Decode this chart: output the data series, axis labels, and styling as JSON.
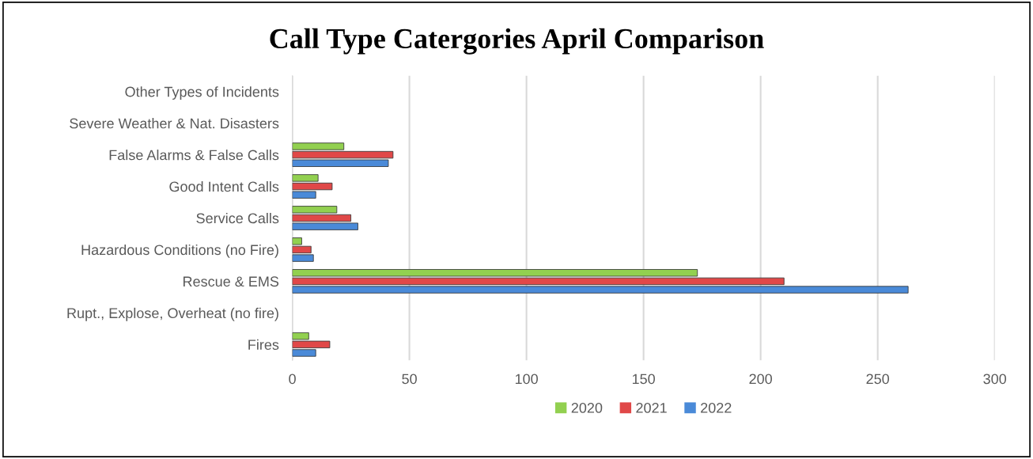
{
  "chart_data": {
    "type": "bar",
    "orientation": "horizontal",
    "title": "Call Type Catergories April Comparison",
    "categories": [
      "Other Types of Incidents",
      "Severe Weather & Nat. Disasters",
      "False Alarms & False Calls",
      "Good Intent Calls",
      "Service Calls",
      "Hazardous Conditions (no Fire)",
      "Rescue & EMS",
      "Rupt., Explose, Overheat (no fire)",
      "Fires"
    ],
    "series": [
      {
        "name": "2020",
        "color": "#92d050",
        "values": [
          0,
          0,
          22,
          11,
          19,
          4,
          173,
          0,
          7
        ]
      },
      {
        "name": "2021",
        "color": "#e04848",
        "values": [
          0,
          0,
          43,
          17,
          25,
          8,
          210,
          0,
          16
        ]
      },
      {
        "name": "2022",
        "color": "#4a8ad8",
        "values": [
          0,
          0,
          41,
          10,
          28,
          9,
          263,
          0,
          10
        ]
      }
    ],
    "xlim": [
      0,
      300
    ],
    "xticks": [
      0,
      50,
      100,
      150,
      200,
      250,
      300
    ],
    "grid": "x",
    "legend": "bottom"
  }
}
